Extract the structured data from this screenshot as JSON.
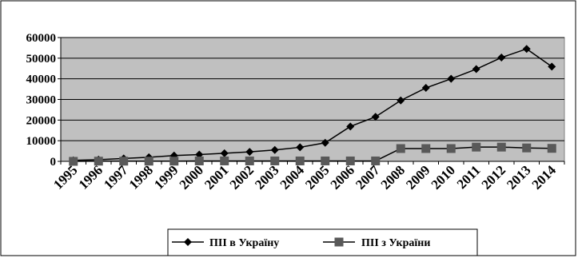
{
  "chart_data": {
    "type": "line",
    "x": [
      "1995",
      "1996",
      "1997",
      "1998",
      "1999",
      "2000",
      "2001",
      "2002",
      "2003",
      "2004",
      "2005",
      "2006",
      "2007",
      "2008",
      "2009",
      "2010",
      "2011",
      "2012",
      "2013",
      "2014"
    ],
    "series": [
      {
        "name": "ПІІ в Україну",
        "values": [
          500,
          800,
          1400,
          2000,
          2800,
          3300,
          3900,
          4600,
          5500,
          6800,
          9000,
          16900,
          21600,
          29500,
          35600,
          40000,
          44700,
          50300,
          54500,
          45900
        ],
        "color": "#000000",
        "marker": "diamond"
      },
      {
        "name": "ПІІ з України",
        "values": [
          0,
          100,
          100,
          100,
          100,
          200,
          200,
          200,
          200,
          200,
          200,
          200,
          200,
          6200,
          6200,
          6200,
          6900,
          6900,
          6500,
          6300
        ],
        "color": "#000000",
        "marker": "square",
        "marker_color": "#595959"
      }
    ],
    "ylim": [
      0,
      60000
    ],
    "yticks": [
      "0",
      "10000",
      "20000",
      "30000",
      "40000",
      "50000",
      "60000"
    ],
    "grid": true,
    "plot_background": "#c0c0c0",
    "legend_position": "bottom"
  }
}
